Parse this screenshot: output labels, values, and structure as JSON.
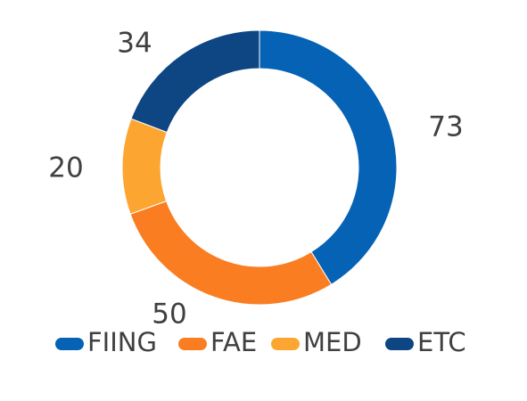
{
  "chart_data": {
    "type": "pie",
    "variant": "donut",
    "categories": [
      "FIING",
      "FAE",
      "MED",
      "ETC"
    ],
    "values": [
      73,
      50,
      20,
      34
    ],
    "colors": [
      "#0562B5",
      "#FA7D22",
      "#FCA631",
      "#0D4683"
    ],
    "data_labels": [
      "73",
      "50",
      "20",
      "34"
    ],
    "legend": {
      "position": "bottom",
      "entries": [
        "FIING",
        "FAE",
        "MED",
        "ETC"
      ]
    },
    "title": ""
  }
}
